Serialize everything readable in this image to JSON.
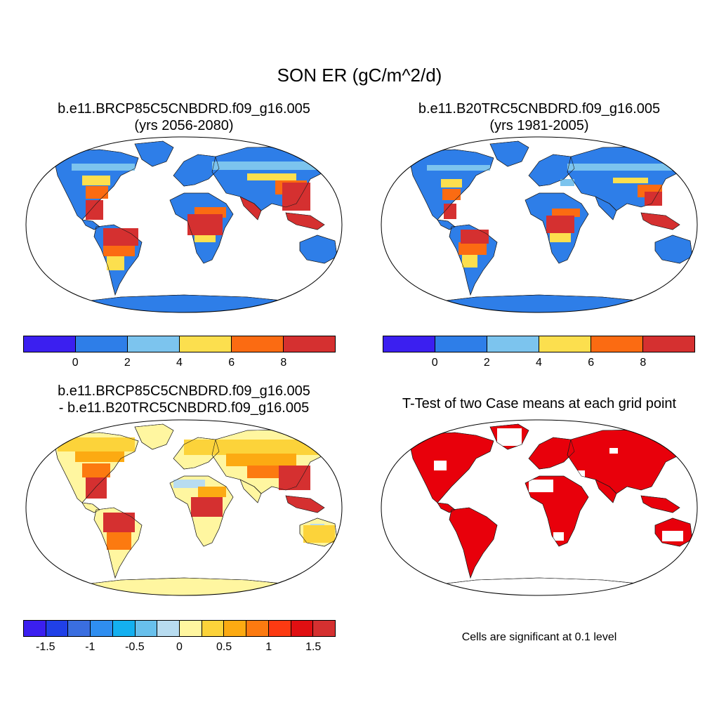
{
  "title": "SON ER (gC/m^2/d)",
  "panels": [
    {
      "id": "future",
      "title_line1": "b.e11.BRCP85C5CNBDRD.f09_g16.005",
      "title_line2": "(yrs 2056-2080)"
    },
    {
      "id": "present",
      "title_line1": "b.e11.B20TRC5CNBDRD.f09_g16.005",
      "title_line2": "(yrs 1981-2005)"
    },
    {
      "id": "difference",
      "title_line1": "b.e11.BRCP85C5CNBDRD.f09_g16.005",
      "title_line2": "- b.e11.B20TRC5CNBDRD.f09_g16.005"
    },
    {
      "id": "ttest",
      "title_line1": "T-Test of two Case means at each grid point",
      "title_line2": ""
    }
  ],
  "colorbars": {
    "absolute": {
      "colors": [
        "#3b1ff0",
        "#2e7ee8",
        "#7cc4ee",
        "#fcdf4e",
        "#fb6b12",
        "#d53030"
      ],
      "ticks": [
        "0",
        "2",
        "4",
        "6",
        "8"
      ]
    },
    "difference": {
      "colors": [
        "#3b1ff0",
        "#2040e8",
        "#3a6ee0",
        "#2f8ef0",
        "#14b0f0",
        "#68c0ec",
        "#b8dcf0",
        "#fff6a0",
        "#fcd33a",
        "#fcaa12",
        "#fc7a10",
        "#fc3a12",
        "#e00f12",
        "#d53030"
      ],
      "ticks": [
        "-1.5",
        "-1",
        "-0.5",
        "0",
        "0.5",
        "1",
        "1.5"
      ]
    }
  },
  "significance_note": "Cells are significant at 0.1 level",
  "colors": {
    "ocean": "#ffffff",
    "tropical_high": "#d53030",
    "temperate_mid": "#2e7ee8",
    "boreal_light": "#7cc4ee",
    "dry_low": "#fcdf4e",
    "diff_zero": "#fff6a0",
    "significant": "#e8000b"
  }
}
